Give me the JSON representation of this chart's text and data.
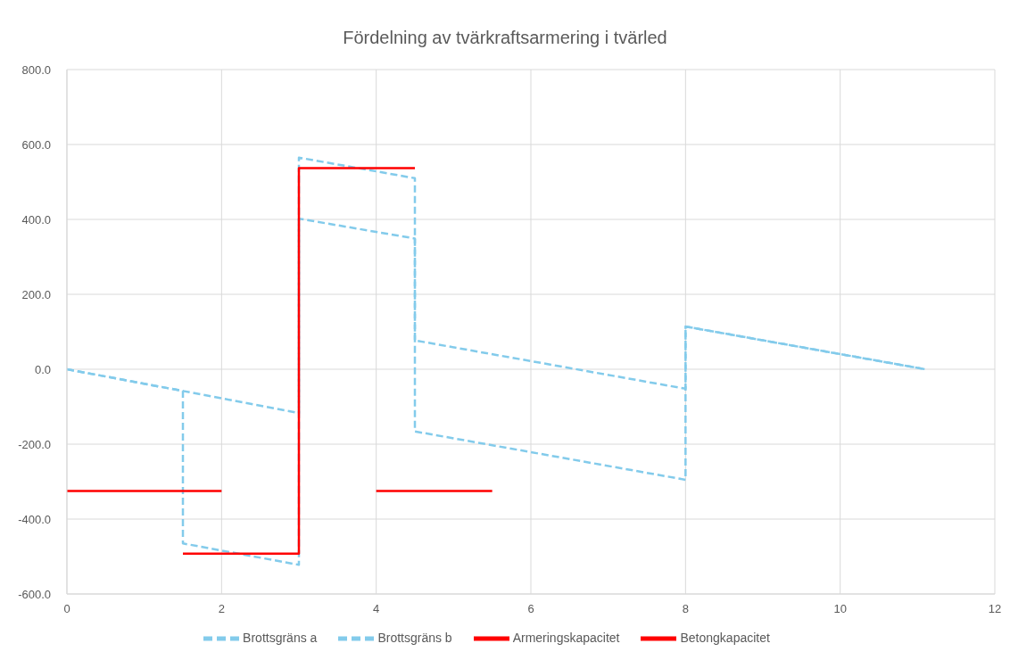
{
  "chart_data": {
    "type": "line",
    "title": "Fördelning av tvärkraftsarmering i tvärled",
    "series": [
      {
        "name": "Brottsgräns a",
        "color": "#83cbeb",
        "line_style": "dashed",
        "x": [
          0,
          1.5,
          1.5,
          3,
          3,
          4.5,
          4.5,
          8,
          8,
          11.1
        ],
        "values": [
          0,
          -58,
          -465,
          -522,
          565,
          510,
          -166,
          -295,
          114,
          0
        ]
      },
      {
        "name": "Brottsgräns b",
        "color": "#83cbeb",
        "line_style": "dashed",
        "x": [
          0,
          1.5,
          3,
          3,
          4.5,
          4.5,
          8,
          8,
          11.1
        ],
        "values": [
          0,
          -58,
          -117,
          402,
          349,
          77,
          -52,
          114,
          0
        ]
      },
      {
        "name": "Armeringskapacitet",
        "color": "#ff0000",
        "line_style": "solid",
        "x": [
          1.5,
          3,
          3,
          4.5
        ],
        "values": [
          -492,
          -492,
          537,
          537
        ]
      },
      {
        "name": "Betongkapacitet",
        "color": "#ff0000",
        "line_style": "solid",
        "x": [
          0,
          2,
          3,
          4,
          5.5
        ],
        "values": [
          -325,
          -325,
          null,
          -325,
          -325
        ]
      }
    ],
    "xlim": [
      0,
      12
    ],
    "xticks": [
      0,
      2,
      4,
      6,
      8,
      10,
      12
    ],
    "ylim": [
      -600,
      800
    ],
    "yticks": [
      {
        "value": -600,
        "label": "-600.0"
      },
      {
        "value": -400,
        "label": "-400.0"
      },
      {
        "value": -200,
        "label": "-200.0"
      },
      {
        "value": 0,
        "label": "0.0"
      },
      {
        "value": 200,
        "label": "200.0"
      },
      {
        "value": 400,
        "label": "400.0"
      },
      {
        "value": 600,
        "label": "600.0"
      },
      {
        "value": 800,
        "label": "800.0"
      }
    ],
    "grid": true,
    "legend": "bottom"
  }
}
